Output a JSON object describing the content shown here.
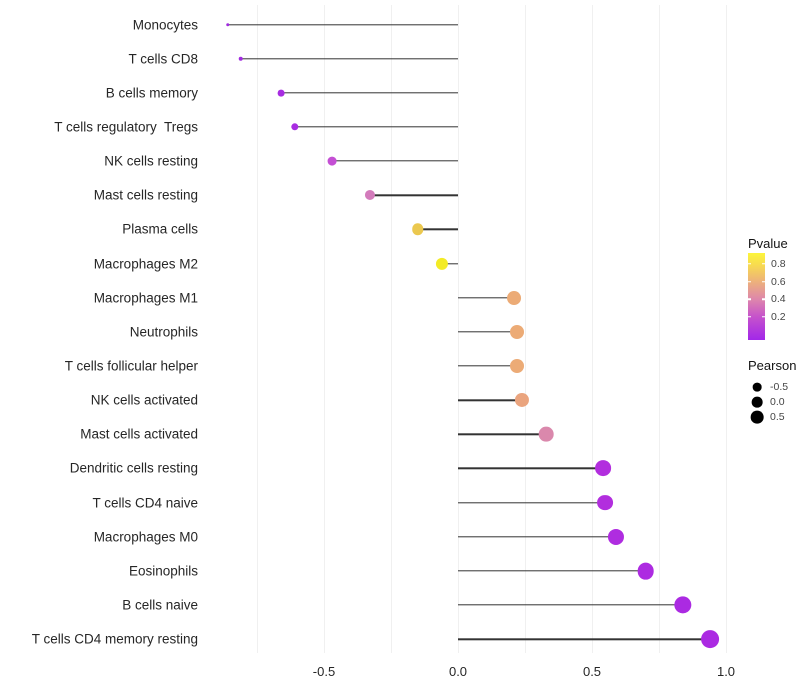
{
  "chart_data": {
    "type": "lollipop",
    "title": "",
    "xlabel": "",
    "ylabel": "",
    "xlim": [
      -0.95,
      1.03
    ],
    "x_tick_labels": [
      "-0.5",
      "0.0",
      "0.5",
      "1.0"
    ],
    "x_tick_values": [
      -0.5,
      0.0,
      0.5,
      1.0
    ],
    "gridline_values": [
      -0.75,
      -0.5,
      -0.25,
      0.0,
      0.25,
      0.5,
      0.75,
      1.0
    ],
    "grid": "vertical-only",
    "baseline": 0.0,
    "points": [
      {
        "label": "Monocytes",
        "pearson": -0.86,
        "color": "#A02BDF"
      },
      {
        "label": "T cells CD8",
        "pearson": -0.81,
        "color": "#A12BE0"
      },
      {
        "label": "B cells memory",
        "pearson": -0.66,
        "color": "#A72CE1"
      },
      {
        "label": "T cells regulatory  Tregs",
        "pearson": -0.61,
        "color": "#A82CE1"
      },
      {
        "label": "NK cells resting",
        "pearson": -0.47,
        "color": "#C44FD4"
      },
      {
        "label": "Mast cells resting",
        "pearson": -0.33,
        "color": "#D37BBB"
      },
      {
        "label": "Plasma cells",
        "pearson": -0.15,
        "color": "#EBC84F"
      },
      {
        "label": "Macrophages M2",
        "pearson": -0.06,
        "color": "#F3EB25"
      },
      {
        "label": "Macrophages M1",
        "pearson": 0.21,
        "color": "#ECAB76"
      },
      {
        "label": "Neutrophils",
        "pearson": 0.22,
        "color": "#ECAB76"
      },
      {
        "label": "T cells follicular helper",
        "pearson": 0.22,
        "color": "#ECAB76"
      },
      {
        "label": "NK cells activated",
        "pearson": 0.24,
        "color": "#EAA47E"
      },
      {
        "label": "Mast cells activated",
        "pearson": 0.33,
        "color": "#DA88AC"
      },
      {
        "label": "Dendritic cells resting",
        "pearson": 0.54,
        "color": "#B22EDE"
      },
      {
        "label": "T cells CD4 naive",
        "pearson": 0.55,
        "color": "#B22EDE"
      },
      {
        "label": "Macrophages M0",
        "pearson": 0.59,
        "color": "#AF2CE0"
      },
      {
        "label": "Eosinophils",
        "pearson": 0.7,
        "color": "#AD2BE1"
      },
      {
        "label": "B cells naive",
        "pearson": 0.84,
        "color": "#AB2AE2"
      },
      {
        "label": "T cells CD4 memory resting",
        "pearson": 0.94,
        "color": "#AB2AE2"
      }
    ],
    "legend_pvalue": {
      "title": "Pvalue",
      "tick_labels": [
        "0.8",
        "0.6",
        "0.4",
        "0.2"
      ],
      "gradient_top_to_bottom": [
        "#FCF53B",
        "#F8DD4E",
        "#EDB17B",
        "#DE87AB",
        "#C653CB",
        "#A227E9"
      ],
      "approx_range": [
        0.0,
        0.9
      ]
    },
    "legend_pearson": {
      "title": "Pearson",
      "items": [
        {
          "label": "-0.5",
          "value": -0.5
        },
        {
          "label": "0.0",
          "value": 0.0
        },
        {
          "label": "0.5",
          "value": 0.5
        }
      ],
      "dot_color": "#000000"
    },
    "styles": {
      "stick_color": "#333333",
      "grid_color": "#F0F0F0",
      "axis_text_color": "#262626",
      "background": "#FFFFFF"
    }
  }
}
